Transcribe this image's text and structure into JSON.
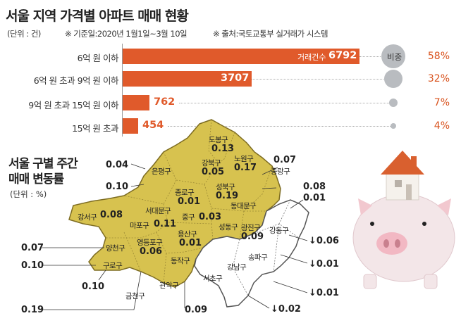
{
  "title": "서울 지역 가격별 아파트 매매 현황",
  "unit": "(단위 : 건)",
  "period": "※ 기준일:2020년 1월1일~3월 10일",
  "source": "※ 출처:국토교통부 실거래가 시스템",
  "series_label": "거래건수",
  "share_label": "비중",
  "colors": {
    "bar": "#e05a2b",
    "map_fill": "#d7c24f",
    "map_line": "#7d6c22",
    "circle": "#b9bcc0"
  },
  "map": {
    "title_line1": "서울 구별 주간",
    "title_line2": "매매 변동률",
    "unit": "(단위 : %)",
    "districts": [
      {
        "name": "도봉구",
        "value": "0.13",
        "group": "up"
      },
      {
        "name": "노원구",
        "value": "0.17",
        "group": "up"
      },
      {
        "name": "강북구",
        "value": "0.05",
        "group": "up"
      },
      {
        "name": "은평구",
        "value": "",
        "group": "up"
      },
      {
        "name": "성북구",
        "value": "0.19",
        "group": "up"
      },
      {
        "name": "중랑구",
        "value": "",
        "group": "up"
      },
      {
        "name": "종로구",
        "value": "0.01",
        "group": "up"
      },
      {
        "name": "동대문구",
        "value": "",
        "group": "up"
      },
      {
        "name": "서대문구",
        "value": "",
        "group": "up"
      },
      {
        "name": "강서구",
        "value": "0.08",
        "group": "up"
      },
      {
        "name": "마포구",
        "value": "0.11",
        "group": "up"
      },
      {
        "name": "중구",
        "value": "0.03",
        "group": "up"
      },
      {
        "name": "성동구",
        "value": "",
        "group": "up"
      },
      {
        "name": "광진구",
        "value": "0.09",
        "group": "up"
      },
      {
        "name": "영등포구",
        "value": "0.06",
        "group": "up"
      },
      {
        "name": "용산구",
        "value": "0.01",
        "group": "up"
      },
      {
        "name": "양천구",
        "value": "",
        "group": "up"
      },
      {
        "name": "구로구",
        "value": "",
        "group": "up"
      },
      {
        "name": "동작구",
        "value": "",
        "group": "up"
      },
      {
        "name": "금천구",
        "value": "",
        "group": "up"
      },
      {
        "name": "관악구",
        "value": "",
        "group": "up"
      },
      {
        "name": "강동구",
        "value": "",
        "group": "down"
      },
      {
        "name": "송파구",
        "value": "",
        "group": "down"
      },
      {
        "name": "강남구",
        "value": "",
        "group": "down"
      },
      {
        "name": "서초구",
        "value": "",
        "group": "down"
      }
    ],
    "callouts": [
      {
        "value": "0.04"
      },
      {
        "value": "0.07"
      },
      {
        "value": "0.10"
      },
      {
        "value": "0.08"
      },
      {
        "value": "0.01"
      },
      {
        "value": "0.07"
      },
      {
        "value": "0.10"
      },
      {
        "value": "↓0.06"
      },
      {
        "value": "↓0.01"
      },
      {
        "value": "0.10"
      },
      {
        "value": "↓0.01"
      },
      {
        "value": "0.19"
      },
      {
        "value": "0.09"
      },
      {
        "value": "↓0.02"
      }
    ]
  },
  "chart_data": {
    "type": "bar",
    "orientation": "horizontal",
    "categories": [
      "6억 원 이하",
      "6억 원 초과 9억 원 이하",
      "9억 원 초과 15억 원 이하",
      "15억 원 초과"
    ],
    "values": [
      6792,
      3707,
      762,
      454
    ],
    "value_labels": [
      "6792",
      "3707",
      "762",
      "454"
    ],
    "shares": [
      58,
      32,
      7,
      4
    ],
    "share_labels": [
      "58%",
      "32%",
      "7%",
      "4%"
    ],
    "xlim": [
      0,
      6792
    ]
  }
}
